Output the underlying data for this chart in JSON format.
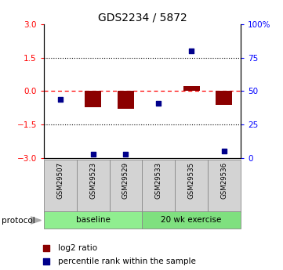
{
  "title": "GDS2234 / 5872",
  "samples": [
    "GSM29507",
    "GSM29523",
    "GSM29529",
    "GSM29533",
    "GSM29535",
    "GSM29536"
  ],
  "log2_ratio": [
    0.0,
    -0.72,
    -0.78,
    0.0,
    0.22,
    -0.62
  ],
  "percentile_rank": [
    44,
    3,
    3,
    41,
    80,
    5
  ],
  "groups": [
    {
      "label": "baseline",
      "start": 0,
      "end": 3,
      "color": "#90EE90"
    },
    {
      "label": "20 wk exercise",
      "start": 3,
      "end": 6,
      "color": "#7FE07F"
    }
  ],
  "bar_color": "#8B0000",
  "dot_color": "#00008B",
  "left_ylim": [
    -3,
    3
  ],
  "right_ylim": [
    0,
    100
  ],
  "left_yticks": [
    -3,
    -1.5,
    0,
    1.5,
    3
  ],
  "right_yticks": [
    0,
    25,
    50,
    75,
    100
  ],
  "right_yticklabels": [
    "0",
    "25",
    "50",
    "75",
    "100%"
  ],
  "hlines": [
    1.5,
    -1.5
  ],
  "zero_line_color": "#FF0000",
  "background_color": "#ffffff",
  "legend_items": [
    {
      "label": "log2 ratio",
      "color": "#8B0000"
    },
    {
      "label": "percentile rank within the sample",
      "color": "#00008B"
    }
  ]
}
